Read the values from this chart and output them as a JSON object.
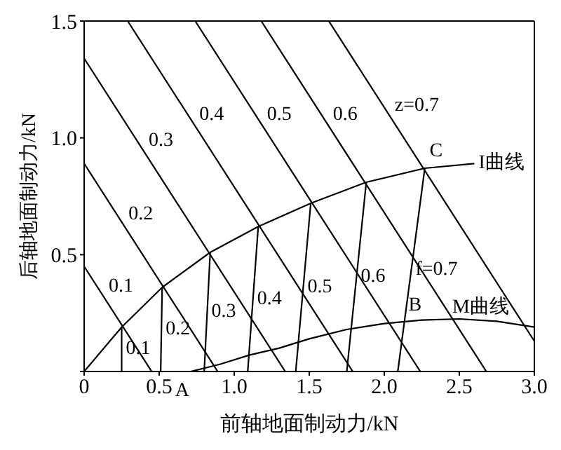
{
  "chart_data": {
    "type": "line",
    "xlabel": "前轴地面制动力/kN",
    "ylabel": "后轴地面制动力/kN",
    "xlim": [
      0,
      3
    ],
    "ylim": [
      0,
      1.5
    ],
    "xticks": [
      {
        "value": 0,
        "label": "0"
      },
      {
        "value": 0.5,
        "label": "0.5"
      },
      {
        "value": 1,
        "label": "1.0"
      },
      {
        "value": 1.5,
        "label": "1.5"
      },
      {
        "value": 2,
        "label": "2.0"
      },
      {
        "value": 2.5,
        "label": "2.5"
      },
      {
        "value": 3,
        "label": "3.0"
      }
    ],
    "yticks": [
      {
        "value": 0,
        "label": null
      },
      {
        "value": 0.5,
        "label": "0.5"
      },
      {
        "value": 1,
        "label": "1.0"
      },
      {
        "value": 1.5,
        "label": "1.5"
      }
    ],
    "marker": "none",
    "line_style": "solid",
    "series": [
      {
        "name": "0.1",
        "color": "#000000",
        "x": [
          0,
          0.45
        ],
        "values": [
          0.45,
          0
        ]
      },
      {
        "name": "0.2",
        "color": "#000000",
        "x": [
          0,
          0.89
        ],
        "values": [
          0.89,
          0
        ]
      },
      {
        "name": "0.3",
        "color": "#000000",
        "x": [
          0,
          1.34
        ],
        "values": [
          1.34,
          0
        ]
      },
      {
        "name": "0.4",
        "color": "#000000",
        "x": [
          0.29,
          1.79
        ],
        "values": [
          1.5,
          0
        ]
      },
      {
        "name": "0.5",
        "color": "#000000",
        "x": [
          0.74,
          2.24
        ],
        "values": [
          1.5,
          0
        ]
      },
      {
        "name": "0.6",
        "color": "#000000",
        "x": [
          1.18,
          2.68
        ],
        "values": [
          1.5,
          0
        ]
      },
      {
        "name": "z=0.7",
        "color": "#000000",
        "x": [
          1.63,
          3
        ],
        "values": [
          1.5,
          0.13
        ]
      },
      {
        "name": "I曲线",
        "color": "#000000",
        "x": [
          0,
          0.25,
          0.52,
          0.84,
          1.16,
          1.51,
          1.88,
          2.27,
          2.6
        ],
        "values": [
          0,
          0.19,
          0.36,
          0.51,
          0.62,
          0.72,
          0.81,
          0.87,
          0.89
        ]
      },
      {
        "name": "M曲线",
        "color": "#000000",
        "x": [
          0.71,
          0.9,
          1.1,
          1.3,
          1.5,
          1.75,
          2,
          2.25,
          2.5,
          2.75,
          3
        ],
        "values": [
          0,
          0.03,
          0.07,
          0.1,
          0.14,
          0.18,
          0.205,
          0.22,
          0.225,
          0.215,
          0.19
        ]
      },
      {
        "color": "#000000",
        "x": [
          0.25,
          0.25
        ],
        "values": [
          0.19,
          0
        ]
      },
      {
        "color": "#000000",
        "x": [
          0.52,
          0.51
        ],
        "values": [
          0.36,
          0
        ]
      },
      {
        "color": "#000000",
        "x": [
          0.84,
          0.8
        ],
        "values": [
          0.51,
          0
        ]
      },
      {
        "color": "#000000",
        "x": [
          1.16,
          1.09
        ],
        "values": [
          0.62,
          0
        ]
      },
      {
        "color": "#000000",
        "x": [
          1.51,
          1.41
        ],
        "values": [
          0.72,
          0
        ]
      },
      {
        "color": "#000000",
        "x": [
          1.88,
          1.75
        ],
        "values": [
          0.81,
          0
        ]
      },
      {
        "color": "#000000",
        "x": [
          2.27,
          2.09
        ],
        "values": [
          0.87,
          0
        ]
      }
    ],
    "annotations": [
      "0.1",
      "0.2",
      "0.3",
      "0.4",
      "0.5",
      "0.6",
      "f=0.7",
      {
        "text": "C",
        "x": 2.27,
        "y": 0.87
      },
      {
        "text": "B",
        "x": 2.13,
        "y": 0.21
      },
      {
        "text": "A",
        "x": 0.71,
        "y": 0
      }
    ]
  }
}
